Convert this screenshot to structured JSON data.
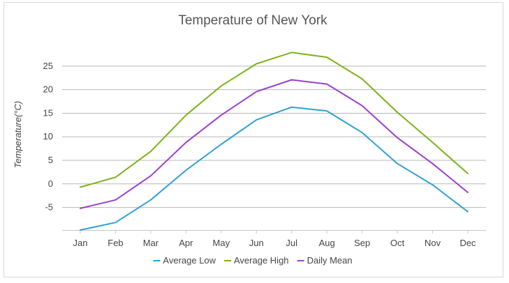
{
  "chart_data": {
    "type": "line",
    "title": "Temperature of New York",
    "xlabel": "",
    "ylabel": "Temperature(°C)",
    "categories": [
      "Jan",
      "Feb",
      "Mar",
      "Apr",
      "May",
      "Jun",
      "Jul",
      "Aug",
      "Sep",
      "Oct",
      "Nov",
      "Dec"
    ],
    "y_ticks": [
      -5,
      0,
      5,
      10,
      15,
      20,
      25
    ],
    "ylim": [
      -9.8,
      27.5
    ],
    "grid": true,
    "legend_position": "bottom-center",
    "series": [
      {
        "name": "Average Low",
        "color": "#2fa0d5",
        "values": [
          -9.8,
          -8.2,
          -3.4,
          2.9,
          8.4,
          13.6,
          16.3,
          15.5,
          10.9,
          4.3,
          -0.2,
          -5.9
        ]
      },
      {
        "name": "Average High",
        "color": "#7ab317",
        "values": [
          -0.7,
          1.4,
          6.9,
          14.6,
          20.8,
          25.5,
          27.9,
          26.9,
          22.3,
          15.2,
          8.8,
          2.2
        ]
      },
      {
        "name": "Daily Mean",
        "color": "#9b3fcb",
        "values": [
          -5.2,
          -3.4,
          1.7,
          8.8,
          14.6,
          19.6,
          22.1,
          21.2,
          16.6,
          9.8,
          4.3,
          -1.8
        ]
      }
    ]
  }
}
